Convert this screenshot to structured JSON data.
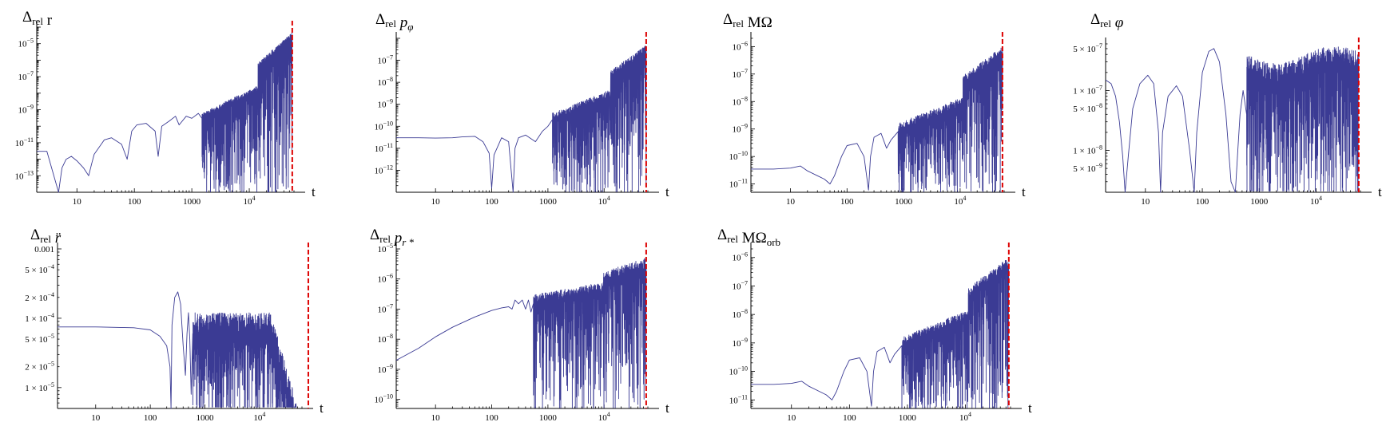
{
  "chart_data": [
    {
      "type": "line",
      "title": "Δrel r",
      "xlabel": "t",
      "xscale": "log",
      "yscale": "log",
      "xlim": [
        2,
        60000
      ],
      "ylim": [
        1e-14,
        0.0001
      ],
      "xticks": [
        "10",
        "100",
        "1000",
        "10^4"
      ],
      "yticks": [
        "10^-13",
        "10^-11",
        "10^-9",
        "10^-7",
        "10^-5"
      ],
      "series_color": "#3b3b94",
      "marker_color": "#dd0000",
      "vertical_marker_t": 56000,
      "series": [
        {
          "x": [
            2,
            3,
            4.8,
            5.5,
            6.5,
            8,
            10,
            13,
            16,
            18,
            20,
            30,
            40,
            60,
            75,
            90,
            110,
            160,
            230,
            260,
            300,
            400,
            520,
            600,
            800,
            1000,
            1300,
            1500
          ],
          "y": [
            3e-12,
            3e-12,
            1e-14,
            3e-13,
            1e-12,
            1.5e-12,
            8e-13,
            3e-13,
            1e-13,
            5e-13,
            2e-12,
            1.5e-11,
            2e-11,
            8e-12,
            1e-12,
            5e-11,
            1.2e-10,
            1.5e-10,
            5e-11,
            1.5e-12,
            1e-10,
            2e-10,
            4e-10,
            1.2e-10,
            4e-10,
            3e-10,
            6e-10,
            3e-10
          ]
        }
      ]
    },
    {
      "type": "line",
      "title": "Δrel pφ",
      "xlabel": "t",
      "xscale": "log",
      "yscale": "log",
      "xlim": [
        2,
        60000
      ],
      "ylim": [
        1e-13,
        1e-06
      ],
      "xticks": [
        "10",
        "100",
        "1000",
        "10^4"
      ],
      "yticks": [
        "10^-12",
        "10^-11",
        "10^-10",
        "10^-9",
        "10^-8",
        "10^-7"
      ],
      "series_color": "#3b3b94",
      "marker_color": "#dd0000",
      "vertical_marker_t": 56000,
      "series": [
        {
          "x": [
            2,
            5,
            10,
            20,
            30,
            50,
            70,
            90,
            100,
            110,
            150,
            200,
            240,
            260,
            300,
            400,
            600,
            800,
            1000,
            1200
          ],
          "y": [
            3e-11,
            3e-11,
            2.9e-11,
            3e-11,
            3.3e-11,
            3.5e-11,
            2e-11,
            6e-12,
            1.5e-13,
            5e-12,
            3e-11,
            2e-11,
            1e-13,
            1e-11,
            3e-11,
            4e-11,
            2e-11,
            6e-11,
            1e-10,
            2e-10
          ]
        }
      ]
    },
    {
      "type": "line",
      "title": "Δrel MΩ",
      "xlabel": "t",
      "xscale": "log",
      "yscale": "log",
      "xlim": [
        2,
        60000
      ],
      "ylim": [
        5e-12,
        2e-06
      ],
      "xticks": [
        "10",
        "100",
        "1000",
        "10^4"
      ],
      "yticks": [
        "10^-11",
        "10^-10",
        "10^-9",
        "10^-8",
        "10^-7",
        "10^-6"
      ],
      "series_color": "#3b3b94",
      "marker_color": "#dd0000",
      "vertical_marker_t": 56000,
      "series": [
        {
          "x": [
            2,
            5,
            10,
            15,
            20,
            30,
            40,
            50,
            60,
            80,
            100,
            150,
            200,
            240,
            260,
            300,
            400,
            500,
            600,
            800
          ],
          "y": [
            3.5e-11,
            3.5e-11,
            3.8e-11,
            4.5e-11,
            3e-11,
            2e-11,
            1.5e-11,
            1e-11,
            2e-11,
            1e-10,
            2.5e-10,
            3e-10,
            1e-10,
            6e-12,
            1e-10,
            5e-10,
            7e-10,
            2e-10,
            4e-10,
            8e-10
          ]
        }
      ]
    },
    {
      "type": "line",
      "title": "Δrel φ",
      "xlabel": "t",
      "xscale": "log",
      "yscale": "log",
      "xlim": [
        2,
        60000
      ],
      "ylim": [
        2e-09,
        6e-07
      ],
      "xticks": [
        "10",
        "100",
        "1000",
        "10^4"
      ],
      "yticks": [
        "5 × 10^-9",
        "1 × 10^-8",
        "5 × 10^-8",
        "1 × 10^-7",
        "5 × 10^-7"
      ],
      "series_color": "#3b3b94",
      "marker_color": "#dd0000",
      "vertical_marker_t": 56000,
      "series": [
        {
          "x": [
            2,
            2.5,
            3,
            3.5,
            4,
            4.4,
            5,
            6,
            8,
            11,
            14,
            17,
            18.5,
            20,
            25,
            35,
            45,
            60,
            72,
            80,
            100,
            130,
            160,
            200,
            260,
            320,
            380,
            420,
            460,
            520,
            600
          ],
          "y": [
            1.5e-07,
            1.3e-07,
            8e-08,
            3e-08,
            8e-09,
            2e-09,
            8e-09,
            5e-08,
            1.3e-07,
            1.8e-07,
            1.3e-07,
            2e-08,
            2e-09,
            2e-08,
            8e-08,
            1.2e-07,
            8e-08,
            1e-08,
            2e-09,
            2e-08,
            2e-07,
            4.5e-07,
            5e-07,
            3e-07,
            4e-08,
            3e-09,
            2e-09,
            1e-08,
            4e-08,
            1e-07,
            4e-08
          ]
        }
      ]
    },
    {
      "type": "line",
      "title": "Δrel r̈",
      "xlabel": "t",
      "xscale": "log",
      "yscale": "log",
      "xlim": [
        2,
        60000
      ],
      "ylim": [
        5e-06,
        0.001
      ],
      "xticks": [
        "10",
        "100",
        "1000",
        "10^4"
      ],
      "yticks": [
        "1 × 10^-5",
        "2 × 10^-5",
        "5 × 10^-5",
        "1 × 10^-4",
        "2 × 10^-4",
        "5 × 10^-4",
        "0.001"
      ],
      "series_color": "#3b3b94",
      "marker_color": "#dd0000",
      "vertical_marker_t": 56000,
      "series": [
        {
          "x": [
            2,
            10,
            50,
            100,
            150,
            200,
            230,
            240,
            250,
            280,
            320,
            360,
            400,
            440,
            470,
            500,
            530,
            560,
            600
          ],
          "y": [
            7.5e-05,
            7.5e-05,
            7.3e-05,
            6.8e-05,
            5.5e-05,
            4e-05,
            2e-05,
            5e-06,
            8e-05,
            0.0002,
            0.00024,
            0.00016,
            4e-05,
            1.5e-05,
            6e-05,
            0.00012,
            5e-05,
            8e-06,
            6e-05
          ]
        }
      ]
    },
    {
      "type": "line",
      "title": "Δrel pr*",
      "xlabel": "t",
      "xscale": "log",
      "yscale": "log",
      "xlim": [
        2,
        60000
      ],
      "ylim": [
        5e-11,
        1e-05
      ],
      "xticks": [
        "10",
        "100",
        "1000",
        "10^4"
      ],
      "yticks": [
        "10^-10",
        "10^-9",
        "10^-8",
        "10^-7",
        "10^-6",
        "10^-5"
      ],
      "series_color": "#3b3b94",
      "marker_color": "#dd0000",
      "vertical_marker_t": 56000,
      "series": [
        {
          "x": [
            2,
            5,
            10,
            20,
            50,
            100,
            150,
            200,
            230,
            260,
            300,
            350,
            400,
            450,
            500,
            550
          ],
          "y": [
            2e-09,
            5e-09,
            1.2e-08,
            2.5e-08,
            5.5e-08,
            9e-08,
            1.1e-07,
            1.2e-07,
            1e-07,
            2e-07,
            1.5e-07,
            2e-07,
            1e-07,
            2e-07,
            8e-08,
            1.5e-07
          ]
        }
      ]
    },
    {
      "type": "line",
      "title": "Δrel MΩorb",
      "xlabel": "t",
      "xscale": "log",
      "yscale": "log",
      "xlim": [
        2,
        60000
      ],
      "ylim": [
        5e-12,
        2e-06
      ],
      "xticks": [
        "10",
        "100",
        "1000",
        "10^4"
      ],
      "yticks": [
        "10^-11",
        "10^-10",
        "10^-9",
        "10^-8",
        "10^-7",
        "10^-6"
      ],
      "series_color": "#3b3b94",
      "marker_color": "#dd0000",
      "vertical_marker_t": 56000,
      "series": [
        {
          "x": [
            2,
            5,
            10,
            15,
            20,
            30,
            40,
            50,
            60,
            80,
            100,
            150,
            200,
            240,
            260,
            300,
            400,
            500,
            600,
            800
          ],
          "y": [
            3.5e-11,
            3.5e-11,
            3.8e-11,
            4.5e-11,
            3e-11,
            2e-11,
            1.5e-11,
            1e-11,
            2e-11,
            1e-10,
            2.5e-10,
            3e-10,
            1e-10,
            6e-12,
            1e-10,
            5e-10,
            7e-10,
            2e-10,
            4e-10,
            8e-10
          ]
        }
      ]
    }
  ]
}
